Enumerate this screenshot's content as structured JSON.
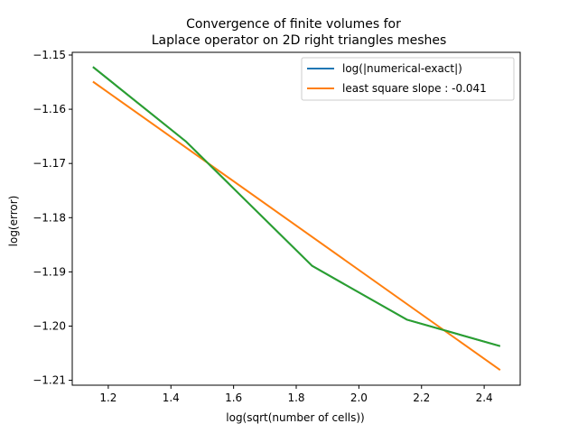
{
  "chart_data": {
    "type": "line",
    "title_lines": [
      "Convergence of finite volumes for",
      "Laplace operator on 2D right triangles meshes"
    ],
    "xlabel": "log(sqrt(number of cells))",
    "ylabel": "log(error)",
    "xlim": [
      1.085,
      2.515
    ],
    "ylim": [
      -1.2109,
      -1.1495
    ],
    "xticks": [
      1.2,
      1.4,
      1.6,
      1.8,
      2.0,
      2.2,
      2.4
    ],
    "xtick_labels": [
      "1.2",
      "1.4",
      "1.6",
      "1.8",
      "2.0",
      "2.2",
      "2.4"
    ],
    "yticks": [
      -1.15,
      -1.16,
      -1.17,
      -1.18,
      -1.19,
      -1.2,
      -1.21
    ],
    "ytick_labels": [
      "−1.15",
      "−1.16",
      "−1.17",
      "−1.18",
      "−1.19",
      "−1.20",
      "−1.21"
    ],
    "grid": false,
    "legend_position": "top-right",
    "series": [
      {
        "name": "log(|numerical-exact|)",
        "color": "#1f77b4",
        "x": [
          1.151,
          1.447,
          1.851,
          2.153,
          2.451
        ],
        "y": [
          -1.1522,
          -1.1659,
          -1.1889,
          -1.1988,
          -1.2037
        ]
      },
      {
        "name": "least square slope : -0.041",
        "color": "#ff7f0e",
        "x": [
          1.151,
          2.451
        ],
        "y": [
          -1.1549,
          -1.2081
        ]
      },
      {
        "name": "",
        "color": "#2ca02c",
        "x": [
          1.151,
          1.447,
          1.851,
          2.153,
          2.451
        ],
        "y": [
          -1.1522,
          -1.1659,
          -1.1889,
          -1.1988,
          -1.2037
        ]
      }
    ]
  }
}
